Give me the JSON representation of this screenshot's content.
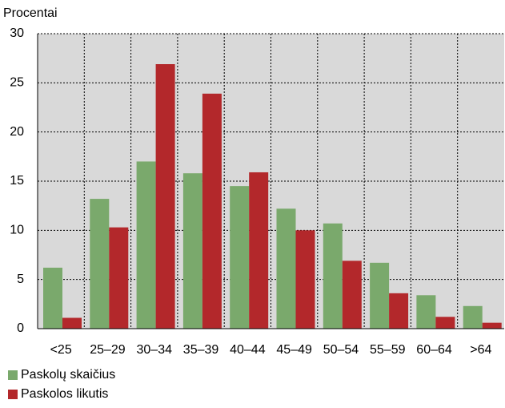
{
  "chart_data": {
    "type": "bar",
    "y_label": "Procentai",
    "categories": [
      "<25",
      "25–29",
      "30–34",
      "35–39",
      "40–44",
      "45–49",
      "50–54",
      "55–59",
      "60–64",
      ">64"
    ],
    "series": [
      {
        "name": "Paskolų skaičius",
        "color": "#7aa96c",
        "values": [
          6.2,
          13.2,
          17,
          15.8,
          14.5,
          12.2,
          10.7,
          6.7,
          3.4,
          2.3
        ]
      },
      {
        "name": "Paskolos likutis",
        "color": "#b3282b",
        "values": [
          1.1,
          10.3,
          26.9,
          23.9,
          15.9,
          10,
          6.9,
          3.6,
          1.2,
          0.6
        ]
      }
    ],
    "ylim": [
      0,
      30
    ],
    "yticks": [
      0,
      5,
      10,
      15,
      20,
      25,
      30
    ],
    "grid": true
  }
}
